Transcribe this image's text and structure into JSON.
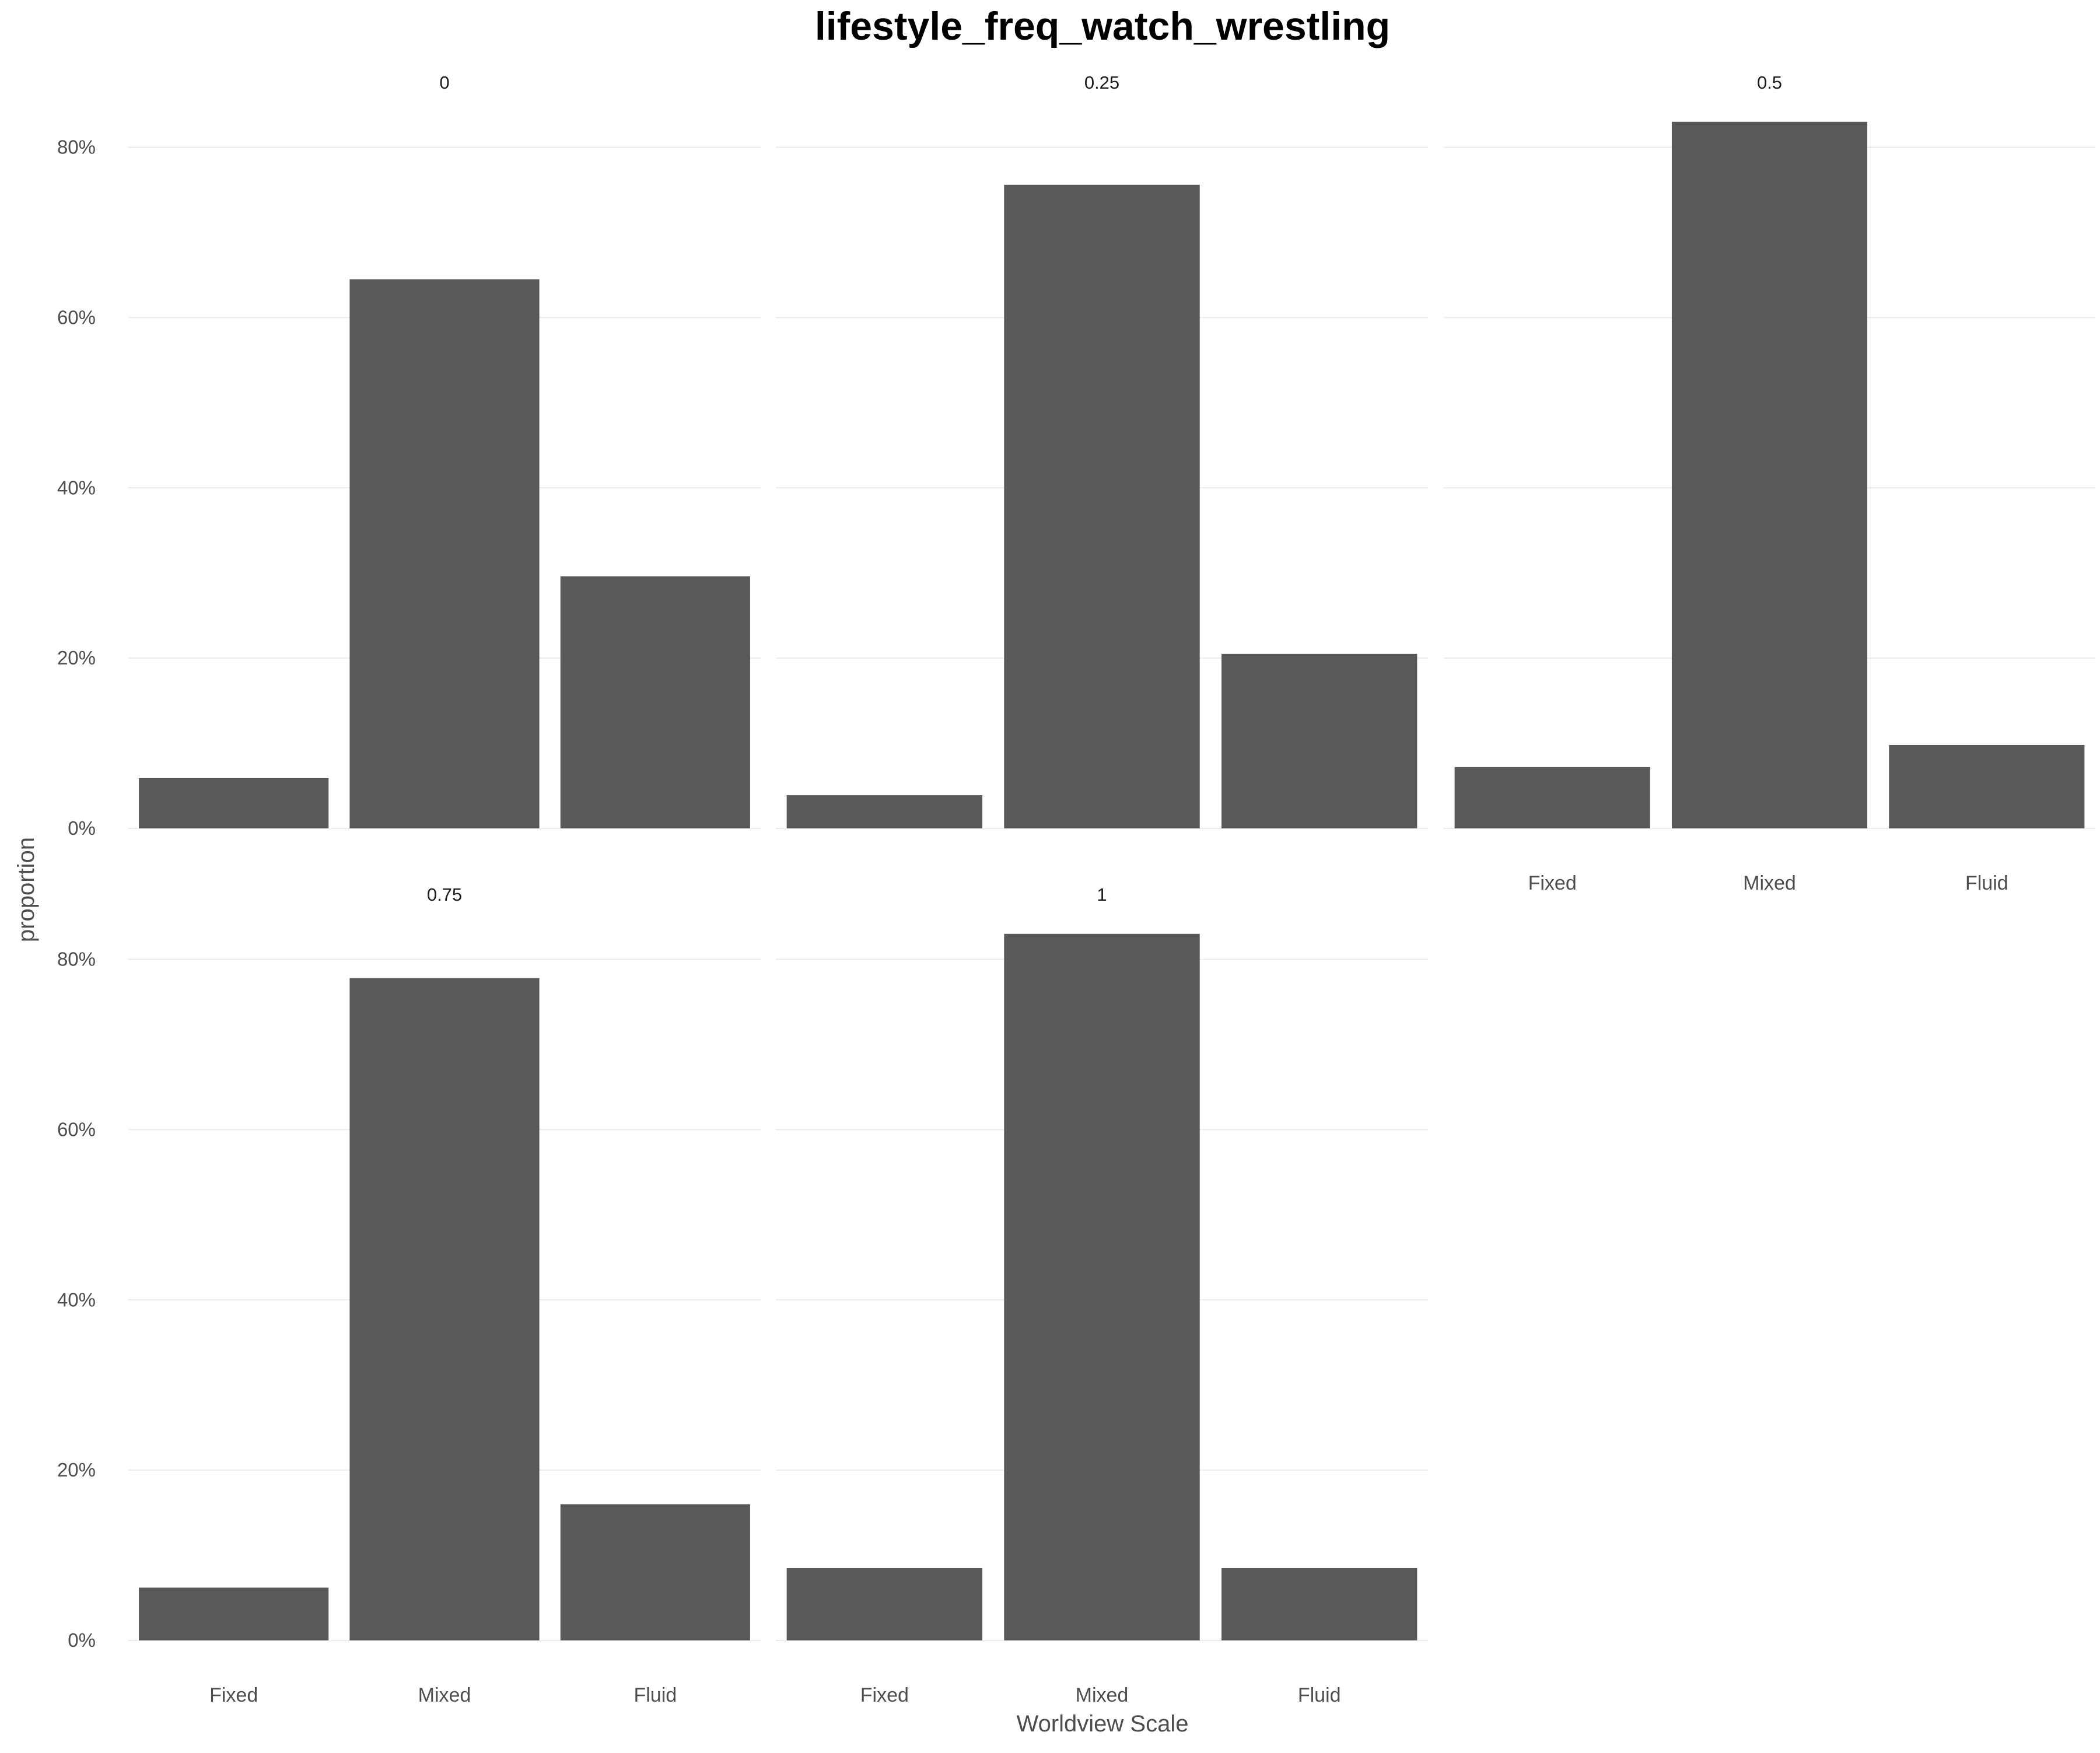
{
  "chart_data": {
    "type": "bar",
    "title": "lifestyle_freq_watch_wrestling",
    "xlabel": "Worldview Scale",
    "ylabel": "proportion",
    "categories": [
      "Fixed",
      "Mixed",
      "Fluid"
    ],
    "y_ticks": [
      0,
      0.2,
      0.4,
      0.6,
      0.8
    ],
    "y_tick_labels": [
      "0%",
      "20%",
      "40%",
      "60%",
      "80%"
    ],
    "ylim": [
      0,
      0.86
    ],
    "grid": true,
    "legend": "none",
    "bar_color": "#595959",
    "grid_color": "#ebebeb",
    "facets": [
      {
        "label": "0",
        "values": [
          0.059,
          0.645,
          0.296
        ]
      },
      {
        "label": "0.25",
        "values": [
          0.039,
          0.756,
          0.205
        ]
      },
      {
        "label": "0.5",
        "values": [
          0.072,
          0.83,
          0.098
        ]
      },
      {
        "label": "0.75",
        "values": [
          0.062,
          0.778,
          0.16
        ]
      },
      {
        "label": "1",
        "values": [
          0.085,
          0.83,
          0.085
        ]
      }
    ]
  }
}
